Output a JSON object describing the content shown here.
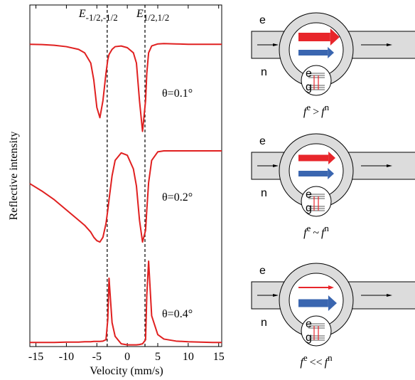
{
  "chart_data": {
    "type": "line",
    "xlabel": "Velocity (mm/s)",
    "ylabel": "Reflective intensity",
    "x": [
      -16,
      -14,
      -12,
      -10,
      -8,
      -7,
      -6,
      -5.5,
      -5,
      -4.5,
      -4,
      -3.5,
      -3.2,
      -3,
      -2.5,
      -2,
      -1,
      0,
      1,
      1.5,
      2,
      2.5,
      3,
      3.2,
      3.5,
      4,
      5,
      6,
      8,
      10,
      12,
      14,
      15.5
    ],
    "series": [
      {
        "name": "θ=0.1°",
        "color": "#e02020",
        "values": [
          0.885,
          0.884,
          0.882,
          0.878,
          0.87,
          0.86,
          0.83,
          0.78,
          0.7,
          0.67,
          0.72,
          0.8,
          0.84,
          0.855,
          0.87,
          0.878,
          0.88,
          0.875,
          0.86,
          0.83,
          0.72,
          0.63,
          0.72,
          0.8,
          0.86,
          0.88,
          0.886,
          0.887,
          0.886,
          0.885,
          0.885,
          0.885,
          0.885
        ]
      },
      {
        "name": "θ=0.2°",
        "color": "#e02020",
        "values": [
          0.477,
          0.455,
          0.43,
          0.4,
          0.37,
          0.355,
          0.335,
          0.32,
          0.31,
          0.306,
          0.32,
          0.36,
          0.4,
          0.43,
          0.5,
          0.545,
          0.567,
          0.56,
          0.52,
          0.47,
          0.37,
          0.306,
          0.34,
          0.4,
          0.48,
          0.545,
          0.57,
          0.573,
          0.573,
          0.573,
          0.573,
          0.573,
          0.573
        ]
      },
      {
        "name": "θ=0.4°",
        "color": "#e02020",
        "values": [
          0.012,
          0.012,
          0.012,
          0.013,
          0.013,
          0.014,
          0.014,
          0.015,
          0.015,
          0.015,
          0.016,
          0.02,
          0.08,
          0.2,
          0.07,
          0.03,
          0.008,
          0.005,
          0.005,
          0.005,
          0.006,
          0.008,
          0.02,
          0.15,
          0.25,
          0.09,
          0.035,
          0.022,
          0.016,
          0.014,
          0.013,
          0.012,
          0.012
        ]
      }
    ],
    "annotations": [
      {
        "text": "E",
        "sub": "-1/2,-1/2",
        "x": -3.3
      },
      {
        "text": "E",
        "sub": "1/2,1/2",
        "x": 2.9
      }
    ],
    "xlim": [
      -16,
      15.5
    ],
    "xticks": [
      -15,
      -10,
      -5,
      0,
      5,
      10,
      15
    ],
    "ylim": [
      0,
      1
    ]
  },
  "diagrams": [
    {
      "upper": "e",
      "lower": "n",
      "level_top": "e",
      "level_bottom": "g",
      "formula": {
        "base1": "f",
        "sup1": "e",
        "relation": ">",
        "base2": "f",
        "sup2": "n"
      }
    },
    {
      "upper": "e",
      "lower": "n",
      "level_top": "e",
      "level_bottom": "g",
      "formula": {
        "base1": "f",
        "sup1": "e",
        "relation": "~",
        "base2": "f",
        "sup2": "n"
      }
    },
    {
      "upper": "e",
      "lower": "n",
      "level_top": "e",
      "level_bottom": "g",
      "formula": {
        "base1": "f",
        "sup1": "e",
        "relation": "<<",
        "base2": "f",
        "sup2": "n"
      }
    }
  ]
}
